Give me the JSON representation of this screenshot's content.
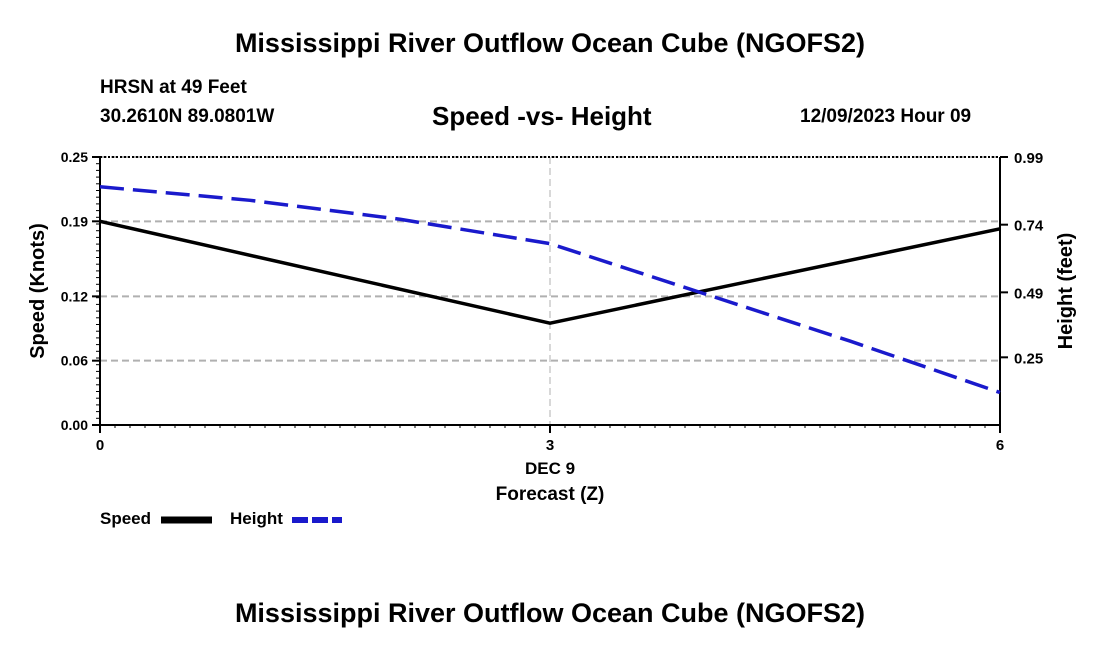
{
  "header": {
    "title": "Mississippi River Outflow Ocean Cube (NGOFS2)",
    "station": "HRSN at 49 Feet",
    "coords": "30.2610N  89.0801W",
    "chart_subtitle": "Speed -vs- Height",
    "datetime": "12/09/2023 Hour 09"
  },
  "footer": {
    "title": "Mississippi River Outflow Ocean Cube (NGOFS2)"
  },
  "chart_data": {
    "type": "line",
    "title": "Speed -vs- Height",
    "xlabel": "Forecast (Z)",
    "xlabel_date": "DEC 9",
    "x": [
      0,
      3,
      6
    ],
    "x_tick_labels": [
      "0",
      "3",
      "6"
    ],
    "xlim": [
      0,
      6
    ],
    "y_left": {
      "label": "Speed (Knots)",
      "lim": [
        0,
        0.25
      ],
      "ticks": [
        0.0,
        0.06,
        0.12,
        0.19,
        0.25
      ],
      "tick_labels": [
        "0.00",
        "0.06",
        "0.12",
        "0.19",
        "0.25"
      ]
    },
    "y_right": {
      "label": "Height (feet)",
      "lim": [
        0,
        0.99
      ],
      "ticks": [
        0.25,
        0.49,
        0.74,
        0.99
      ],
      "tick_labels": [
        "0.25",
        "0.49",
        "0.74",
        "0.99"
      ]
    },
    "series": [
      {
        "name": "Speed",
        "axis": "left",
        "color": "#000000",
        "style": "solid",
        "x": [
          0,
          3,
          6
        ],
        "values": [
          0.19,
          0.095,
          0.183
        ]
      },
      {
        "name": "Height",
        "axis": "right",
        "color": "#1a1acc",
        "style": "dashed",
        "x": [
          0,
          1,
          2,
          3,
          4,
          5,
          6
        ],
        "values": [
          0.88,
          0.83,
          0.76,
          0.67,
          0.49,
          0.31,
          0.12
        ]
      }
    ],
    "grid": true,
    "legend": "bottom-left"
  }
}
